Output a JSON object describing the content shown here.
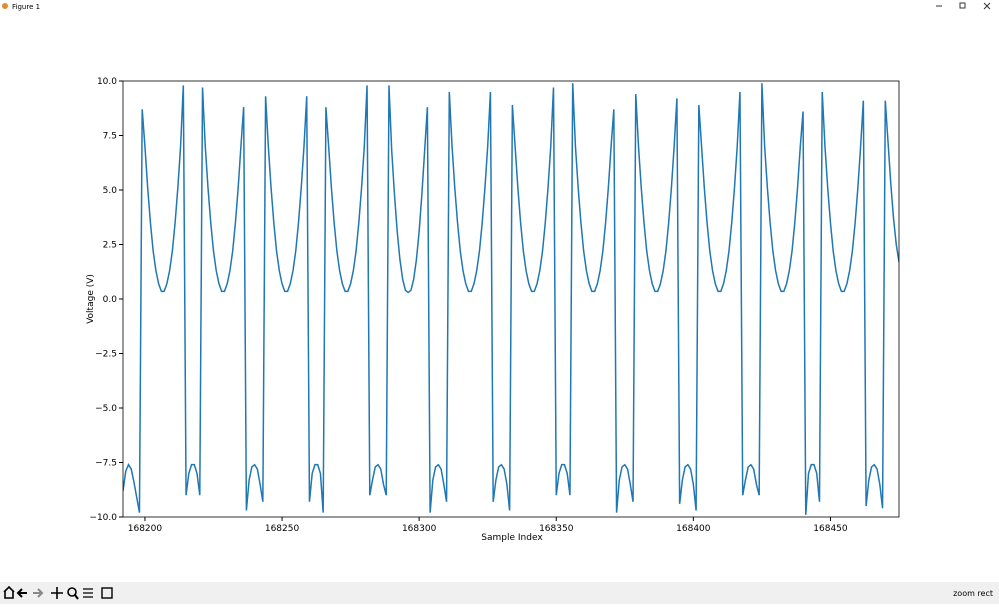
{
  "window": {
    "title": "Figure 1",
    "status": "zoom rect"
  },
  "chart_data": {
    "type": "line",
    "xlabel": "Sample Index",
    "ylabel": "Voltage (V)",
    "xlim": [
      168192,
      168475
    ],
    "ylim": [
      -10,
      10
    ],
    "xticks": [
      168200,
      168250,
      168300,
      168350,
      168400,
      168450
    ],
    "yticks": [
      {
        "value": -10,
        "label": "−10.0"
      },
      {
        "value": -7.5,
        "label": "−7.5"
      },
      {
        "value": -5,
        "label": "−5.0"
      },
      {
        "value": -2.5,
        "label": "−2.5"
      },
      {
        "value": 0,
        "label": "0.0"
      },
      {
        "value": 2.5,
        "label": "2.5"
      },
      {
        "value": 5,
        "label": "5.0"
      },
      {
        "value": 7.5,
        "label": "7.5"
      },
      {
        "value": 10,
        "label": "10.0"
      }
    ],
    "x": [
      168192,
      168193,
      168194,
      168195,
      168196,
      168197,
      168198,
      168199,
      168200,
      168201,
      168202,
      168203,
      168204,
      168205,
      168206,
      168207,
      168208,
      168209,
      168210,
      168211,
      168212,
      168213,
      168214,
      168215,
      168216,
      168217,
      168218,
      168219,
      168220,
      168221,
      168222,
      168223,
      168224,
      168225,
      168226,
      168227,
      168228,
      168229,
      168230,
      168231,
      168232,
      168233,
      168234,
      168235,
      168236,
      168237,
      168238,
      168239,
      168240,
      168241,
      168242,
      168243,
      168244,
      168245,
      168246,
      168247,
      168248,
      168249,
      168250,
      168251,
      168252,
      168253,
      168254,
      168255,
      168256,
      168257,
      168258,
      168259,
      168260,
      168261,
      168262,
      168263,
      168264,
      168265,
      168266,
      168267,
      168268,
      168269,
      168270,
      168271,
      168272,
      168273,
      168274,
      168275,
      168276,
      168277,
      168278,
      168279,
      168280,
      168281,
      168282,
      168283,
      168284,
      168285,
      168286,
      168287,
      168288,
      168289,
      168290,
      168291,
      168292,
      168293,
      168294,
      168295,
      168296,
      168297,
      168298,
      168299,
      168300,
      168301,
      168302,
      168303,
      168304,
      168305,
      168306,
      168307,
      168308,
      168309,
      168310,
      168311,
      168312,
      168313,
      168314,
      168315,
      168316,
      168317,
      168318,
      168319,
      168320,
      168321,
      168322,
      168323,
      168324,
      168325,
      168326,
      168327,
      168328,
      168329,
      168330,
      168331,
      168332,
      168333,
      168334,
      168335,
      168336,
      168337,
      168338,
      168339,
      168340,
      168341,
      168342,
      168343,
      168344,
      168345,
      168346,
      168347,
      168348,
      168349,
      168350,
      168351,
      168352,
      168353,
      168354,
      168355,
      168356,
      168357,
      168358,
      168359,
      168360,
      168361,
      168362,
      168363,
      168364,
      168365,
      168366,
      168367,
      168368,
      168369,
      168370,
      168371,
      168372,
      168373,
      168374,
      168375,
      168376,
      168377,
      168378,
      168379,
      168380,
      168381,
      168382,
      168383,
      168384,
      168385,
      168386,
      168387,
      168388,
      168389,
      168390,
      168391,
      168392,
      168393,
      168394,
      168395,
      168396,
      168397,
      168398,
      168399,
      168400,
      168401,
      168402,
      168403,
      168404,
      168405,
      168406,
      168407,
      168408,
      168409,
      168410,
      168411,
      168412,
      168413,
      168414,
      168415,
      168416,
      168417,
      168418,
      168419,
      168420,
      168421,
      168422,
      168423,
      168424,
      168425,
      168426,
      168427,
      168428,
      168429,
      168430,
      168431,
      168432,
      168433,
      168434,
      168435,
      168436,
      168437,
      168438,
      168439,
      168440,
      168441,
      168442,
      168443,
      168444,
      168445,
      168446,
      168447,
      168448,
      168449,
      168450,
      168451,
      168452,
      168453,
      168454,
      168455,
      168456,
      168457,
      168458,
      168459,
      168460,
      168461,
      168462,
      168463,
      168464,
      168465,
      168466,
      168467,
      168468,
      168469,
      168470,
      168471,
      168472,
      168473,
      168474,
      168475
    ],
    "series": [
      {
        "color": "#1f77b4",
        "values": [
          -8.8,
          -7.9,
          -7.6,
          -7.8,
          -8.4,
          -9.1,
          -9.8,
          8.7,
          7.0,
          5.1,
          3.5,
          2.2,
          1.3,
          0.7,
          0.35,
          0.35,
          0.7,
          1.3,
          2.2,
          3.5,
          5.1,
          7.0,
          9.8,
          -9.0,
          -8.0,
          -7.6,
          -7.6,
          -8.0,
          -9.0,
          9.7,
          7.0,
          5.1,
          3.5,
          2.2,
          1.3,
          0.7,
          0.35,
          0.35,
          0.7,
          1.3,
          2.2,
          3.5,
          5.1,
          7.0,
          8.8,
          -9.7,
          -8.3,
          -7.7,
          -7.6,
          -7.8,
          -8.5,
          -9.3,
          9.3,
          7.0,
          5.1,
          3.5,
          2.2,
          1.3,
          0.7,
          0.35,
          0.35,
          0.7,
          1.3,
          2.2,
          3.5,
          5.1,
          7.0,
          9.3,
          -9.3,
          -8.0,
          -7.6,
          -7.6,
          -8.0,
          -9.8,
          8.8,
          7.0,
          5.1,
          3.5,
          2.2,
          1.3,
          0.7,
          0.35,
          0.35,
          0.7,
          1.3,
          2.2,
          3.5,
          5.1,
          7.0,
          9.8,
          -9.0,
          -8.3,
          -7.7,
          -7.6,
          -7.8,
          -8.5,
          -9.0,
          9.8,
          6.8,
          4.8,
          3.1,
          1.8,
          0.9,
          0.4,
          0.3,
          0.4,
          0.9,
          1.8,
          3.1,
          4.8,
          6.8,
          8.8,
          -9.8,
          -8.3,
          -7.7,
          -7.6,
          -7.8,
          -8.5,
          -9.3,
          9.5,
          7.0,
          5.1,
          3.5,
          2.2,
          1.3,
          0.7,
          0.35,
          0.35,
          0.7,
          1.3,
          2.2,
          3.5,
          5.1,
          7.0,
          9.5,
          -9.3,
          -8.3,
          -7.7,
          -7.6,
          -7.8,
          -8.5,
          -9.7,
          8.9,
          7.0,
          5.1,
          3.5,
          2.2,
          1.3,
          0.7,
          0.35,
          0.35,
          0.7,
          1.3,
          2.2,
          3.5,
          5.1,
          7.0,
          9.7,
          -9.0,
          -8.0,
          -7.6,
          -7.6,
          -8.0,
          -9.0,
          9.9,
          7.0,
          5.1,
          3.5,
          2.2,
          1.3,
          0.7,
          0.35,
          0.35,
          0.7,
          1.3,
          2.2,
          3.5,
          5.1,
          7.0,
          8.7,
          -9.8,
          -8.3,
          -7.7,
          -7.6,
          -7.8,
          -8.5,
          -9.3,
          9.4,
          7.0,
          5.1,
          3.5,
          2.2,
          1.3,
          0.7,
          0.35,
          0.35,
          0.7,
          1.3,
          2.2,
          3.5,
          5.1,
          7.0,
          9.2,
          -9.4,
          -8.3,
          -7.7,
          -7.6,
          -7.8,
          -8.5,
          -9.7,
          8.9,
          7.0,
          5.1,
          3.5,
          2.2,
          1.3,
          0.7,
          0.35,
          0.35,
          0.7,
          1.3,
          2.2,
          3.5,
          5.1,
          7.0,
          9.5,
          -9.0,
          -8.3,
          -7.7,
          -7.6,
          -7.8,
          -8.5,
          -9.0,
          9.9,
          7.0,
          5.1,
          3.5,
          2.2,
          1.3,
          0.7,
          0.35,
          0.35,
          0.7,
          1.3,
          2.2,
          3.5,
          5.1,
          7.0,
          8.6,
          -9.9,
          -8.0,
          -7.6,
          -7.6,
          -8.0,
          -9.3,
          9.5,
          7.0,
          5.1,
          3.5,
          2.2,
          1.3,
          0.7,
          0.35,
          0.35,
          0.7,
          1.3,
          2.2,
          3.5,
          5.1,
          7.0,
          9.1,
          -9.5,
          -8.3,
          -7.7,
          -7.6,
          -7.8,
          -8.5,
          -9.6,
          9.1,
          7.2,
          5.3,
          3.7,
          2.5,
          1.7
        ]
      }
    ]
  }
}
